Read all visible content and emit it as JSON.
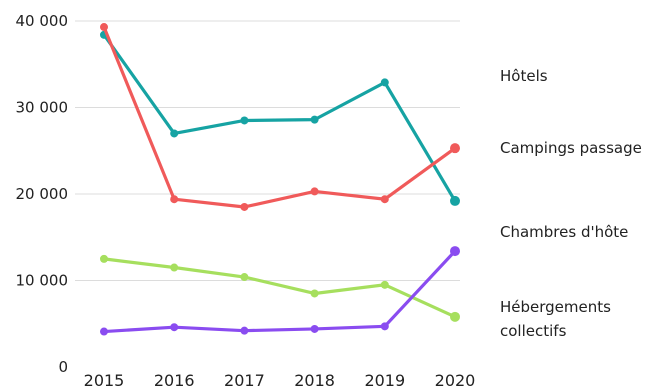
{
  "chart_data": {
    "type": "line",
    "title": "",
    "xlabel": "",
    "ylabel": "",
    "x": [
      2015,
      2016,
      2017,
      2018,
      2019,
      2020
    ],
    "y_ticks": [
      "0",
      "10 000",
      "20 000",
      "30 000",
      "40 000"
    ],
    "ylim": [
      0,
      40000
    ],
    "grid": true,
    "legend": "right",
    "series": [
      {
        "name": "Hôtels",
        "color": "#16a3a3",
        "values": [
          38400,
          27000,
          28500,
          28600,
          32900,
          19200
        ]
      },
      {
        "name": "Campings passage",
        "color": "#f05a5a",
        "values": [
          39300,
          19400,
          18500,
          20300,
          19400,
          25300
        ]
      },
      {
        "name": "Chambres d'hôte",
        "color": "#a6df5e",
        "values": [
          12500,
          11500,
          10400,
          8500,
          9500,
          5800
        ]
      },
      {
        "name": "Hébergements collectifs",
        "color": "#8a4cf0",
        "values": [
          4100,
          4600,
          4200,
          4400,
          4700,
          13400
        ]
      }
    ]
  }
}
